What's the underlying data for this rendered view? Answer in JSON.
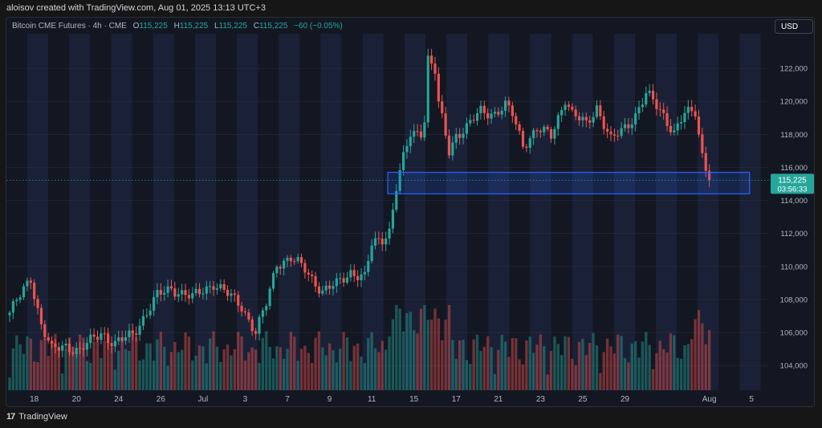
{
  "header": {
    "credit": "aloisov created with TradingView.com, Aug 01, 2025 13:13 UTC+3"
  },
  "legend": {
    "symbol": "Bitcoin CME Futures · 4h · CME",
    "open_label": "O",
    "open": "115,225",
    "high_label": "H",
    "high": "115,225",
    "low_label": "L",
    "low": "115,225",
    "close_label": "C",
    "close": "115,225",
    "change": "−60 (−0.05%)"
  },
  "currency_button": "USD",
  "price_badge": {
    "price": "115,225",
    "countdown": "03:56:33"
  },
  "footer": {
    "brand": "TradingView",
    "logo_text": "17"
  },
  "colors": {
    "up": "#26a69a",
    "down": "#ef5350",
    "band_dark": "#131722",
    "band_light": "#1a2136",
    "zone_stroke": "#2962ff"
  },
  "chart_data": {
    "type": "candlestick",
    "title": "Bitcoin CME Futures · 4h · CME",
    "ylim": [
      102500,
      124000
    ],
    "y_ticks": [
      104000,
      106000,
      108000,
      110000,
      112000,
      114000,
      116000,
      118000,
      120000,
      122000
    ],
    "y_tick_labels": [
      "104,000",
      "106,000",
      "108,000",
      "110,000",
      "112,000",
      "114,000",
      "116,000",
      "118,000",
      "120,000",
      "122,000"
    ],
    "x_ticks": [
      {
        "label": "18",
        "bar": 7
      },
      {
        "label": "20",
        "bar": 19
      },
      {
        "label": "24",
        "bar": 31
      },
      {
        "label": "26",
        "bar": 43
      },
      {
        "label": "Jul",
        "bar": 55
      },
      {
        "label": "3",
        "bar": 67
      },
      {
        "label": "7",
        "bar": 79
      },
      {
        "label": "9",
        "bar": 91
      },
      {
        "label": "11",
        "bar": 103
      },
      {
        "label": "15",
        "bar": 115
      },
      {
        "label": "17",
        "bar": 127
      },
      {
        "label": "21",
        "bar": 139
      },
      {
        "label": "23",
        "bar": 151
      },
      {
        "label": "25",
        "bar": 163
      },
      {
        "label": "29",
        "bar": 175
      },
      {
        "label": "Aug",
        "bar": 199
      },
      {
        "label": "5",
        "bar": 211
      }
    ],
    "bar_count": 200,
    "last_price": 115225,
    "support_zone": {
      "low": 114400,
      "high": 115700,
      "start_bar": 108,
      "end_bar": 210
    },
    "volume_max": 1.0,
    "close_keypoints": [
      [
        0,
        107200
      ],
      [
        3,
        108200
      ],
      [
        6,
        109300
      ],
      [
        9,
        106500
      ],
      [
        12,
        104900
      ],
      [
        16,
        105200
      ],
      [
        20,
        104900
      ],
      [
        26,
        106000
      ],
      [
        30,
        105300
      ],
      [
        35,
        105900
      ],
      [
        38,
        106900
      ],
      [
        42,
        108200
      ],
      [
        46,
        108700
      ],
      [
        52,
        108100
      ],
      [
        58,
        109000
      ],
      [
        62,
        108300
      ],
      [
        66,
        107600
      ],
      [
        70,
        106000
      ],
      [
        73,
        107700
      ],
      [
        76,
        110200
      ],
      [
        80,
        110500
      ],
      [
        84,
        109800
      ],
      [
        89,
        108500
      ],
      [
        93,
        108900
      ],
      [
        97,
        109700
      ],
      [
        101,
        109300
      ],
      [
        103,
        111300
      ],
      [
        106,
        111700
      ],
      [
        108,
        112200
      ],
      [
        110,
        114800
      ],
      [
        112,
        116500
      ],
      [
        114,
        118000
      ],
      [
        117,
        118200
      ],
      [
        118,
        119000
      ],
      [
        119,
        122600
      ],
      [
        121,
        121800
      ],
      [
        122,
        119800
      ],
      [
        125,
        117000
      ],
      [
        127,
        118000
      ],
      [
        130,
        118400
      ],
      [
        134,
        119400
      ],
      [
        138,
        119300
      ],
      [
        141,
        119700
      ],
      [
        143,
        119200
      ],
      [
        146,
        117400
      ],
      [
        150,
        118300
      ],
      [
        154,
        117900
      ],
      [
        158,
        120200
      ],
      [
        160,
        119200
      ],
      [
        164,
        118600
      ],
      [
        167,
        119700
      ],
      [
        171,
        117600
      ],
      [
        174,
        118200
      ],
      [
        178,
        119200
      ],
      [
        181,
        120400
      ],
      [
        183,
        120000
      ],
      [
        186,
        119200
      ],
      [
        189,
        118100
      ],
      [
        192,
        119200
      ],
      [
        195,
        119400
      ],
      [
        197,
        116800
      ],
      [
        199,
        115300
      ]
    ]
  }
}
